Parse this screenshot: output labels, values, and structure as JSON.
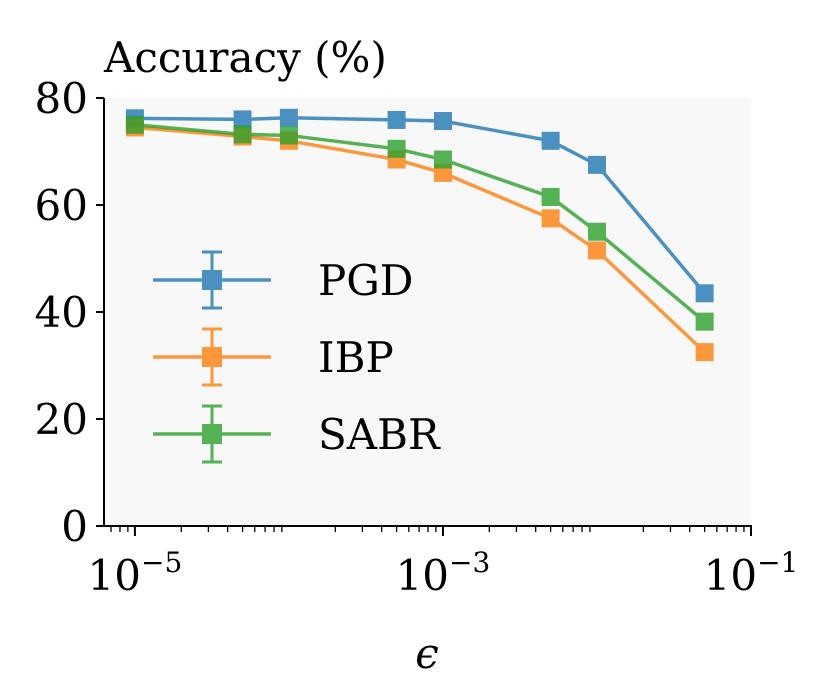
{
  "chart_data": {
    "type": "line",
    "title": "Accuracy (%)",
    "xlabel": "ϵ",
    "ylabel": "",
    "xscale": "log",
    "xlim": [
      6.3e-06,
      0.1
    ],
    "ylim": [
      0,
      80
    ],
    "x_ticks": [
      {
        "value": 1e-05,
        "base": "10",
        "exp": "−5"
      },
      {
        "value": 0.001,
        "base": "10",
        "exp": "−3"
      },
      {
        "value": 0.1,
        "base": "10",
        "exp": "−1"
      }
    ],
    "y_ticks": [
      "0",
      "20",
      "40",
      "60",
      "80"
    ],
    "legend_position": "lower-left",
    "x": [
      1e-05,
      5e-05,
      0.0001,
      0.0005,
      0.001,
      0.005,
      0.01,
      0.05
    ],
    "series": [
      {
        "name": "PGD",
        "color": "#1f77b4",
        "values": [
          76.2,
          76.0,
          76.3,
          75.9,
          75.7,
          72.0,
          67.5,
          43.5
        ],
        "errors": [
          0.8,
          0.6,
          0.7,
          0.6,
          0.6,
          0.8,
          0.8,
          0.9
        ]
      },
      {
        "name": "IBP",
        "color": "#ff7f0e",
        "values": [
          74.5,
          72.8,
          72.0,
          68.5,
          66.0,
          57.5,
          51.5,
          32.5
        ],
        "errors": [
          0.9,
          1.0,
          1.0,
          0.8,
          0.8,
          0.9,
          0.8,
          0.9
        ]
      },
      {
        "name": "SABR",
        "color": "#2ca02c",
        "values": [
          75.0,
          73.2,
          73.0,
          70.5,
          68.5,
          61.5,
          55.0,
          38.2
        ],
        "errors": [
          0.8,
          0.9,
          0.9,
          0.8,
          0.8,
          0.8,
          0.8,
          0.8
        ]
      }
    ]
  }
}
